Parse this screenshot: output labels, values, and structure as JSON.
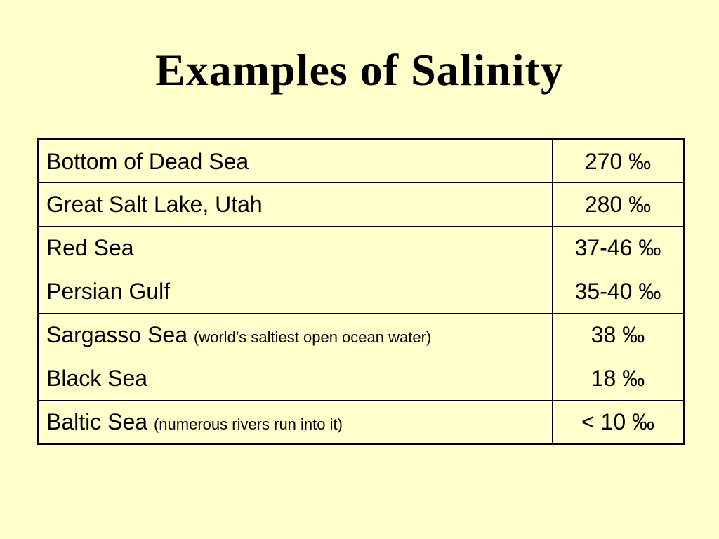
{
  "title": "Examples of Salinity",
  "table": {
    "rows": [
      {
        "name": "Bottom of Dead Sea",
        "value": "270 ‰"
      },
      {
        "name": "Great Salt Lake, Utah",
        "value": "280 ‰"
      },
      {
        "name": "Red Sea",
        "value": "37-46 ‰"
      },
      {
        "name": "Persian Gulf",
        "value": "35-40 ‰"
      },
      {
        "name": "Sargasso Sea",
        "note": "(world’s saltiest open ocean water)",
        "value": "38 ‰"
      },
      {
        "name": "Black Sea",
        "value": "18 ‰"
      },
      {
        "name": "Baltic Sea",
        "note": "(numerous rivers run into it)",
        "value": "< 10 ‰"
      }
    ]
  }
}
